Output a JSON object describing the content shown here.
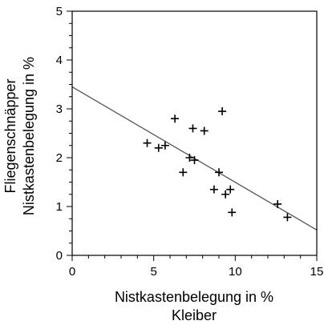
{
  "chart_data": {
    "type": "scatter",
    "xlabel": [
      "Nistkastenbelegung in %",
      "Kleiber"
    ],
    "ylabel": [
      "Fliegenschnäpper",
      "Nistkastenbelegung in %"
    ],
    "xlim": [
      0,
      15
    ],
    "ylim": [
      0,
      5
    ],
    "x_ticks": [
      0,
      5,
      10,
      15
    ],
    "y_ticks": [
      0,
      1,
      2,
      3,
      4,
      5
    ],
    "grid": false,
    "marker": "plus",
    "series": [
      {
        "points": [
          {
            "x": 4.6,
            "y": 2.3
          },
          {
            "x": 5.3,
            "y": 2.2
          },
          {
            "x": 5.7,
            "y": 2.25
          },
          {
            "x": 6.3,
            "y": 2.8
          },
          {
            "x": 6.8,
            "y": 1.7
          },
          {
            "x": 7.2,
            "y": 2.0
          },
          {
            "x": 7.4,
            "y": 2.6
          },
          {
            "x": 7.5,
            "y": 1.95
          },
          {
            "x": 8.1,
            "y": 2.55
          },
          {
            "x": 8.7,
            "y": 1.35
          },
          {
            "x": 9.0,
            "y": 1.7
          },
          {
            "x": 9.2,
            "y": 2.95
          },
          {
            "x": 9.4,
            "y": 1.25
          },
          {
            "x": 9.7,
            "y": 1.35
          },
          {
            "x": 9.8,
            "y": 0.88
          },
          {
            "x": 12.6,
            "y": 1.05
          },
          {
            "x": 13.2,
            "y": 0.78
          }
        ]
      }
    ],
    "trendline": {
      "x0": 0,
      "y0": 3.45,
      "x1": 15,
      "y1": 0.52
    }
  }
}
